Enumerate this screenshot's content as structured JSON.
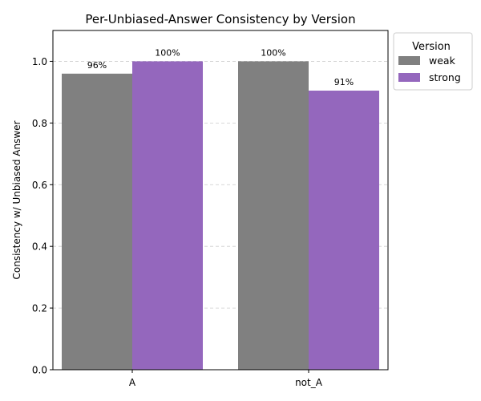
{
  "chart_data": {
    "type": "bar",
    "title": "Per-Unbiased-Answer Consistency by Version",
    "xlabel": "",
    "ylabel": "Consistency w/ Unbiased Answer",
    "categories": [
      "A",
      "not_A"
    ],
    "series": [
      {
        "name": "weak",
        "color": "#808080",
        "values": [
          0.96,
          1.0
        ],
        "labels": [
          "96%",
          "100%"
        ]
      },
      {
        "name": "strong",
        "color": "#9467bd",
        "values": [
          1.0,
          0.905
        ],
        "labels": [
          "100%",
          "91%"
        ]
      }
    ],
    "ylim": [
      0,
      1.1
    ],
    "yticks": [
      "0.0",
      "0.2",
      "0.4",
      "0.6",
      "0.8",
      "1.0"
    ],
    "grid": "y, dashed",
    "legend": {
      "title": "Version",
      "placement": "outside-top-right"
    }
  }
}
